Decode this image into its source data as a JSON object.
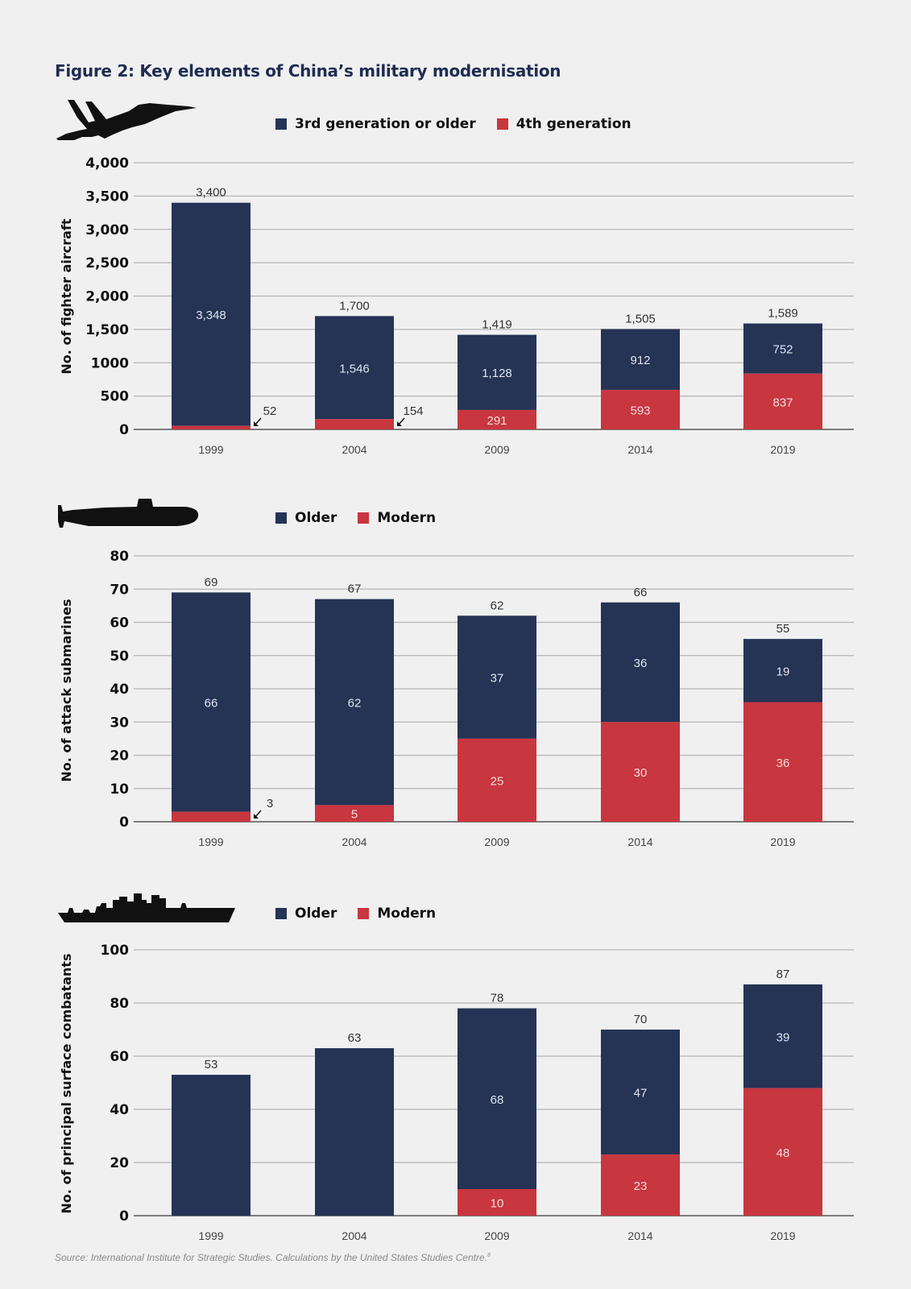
{
  "title": "Figure 2: Key elements of China’s military modernisation",
  "source": "Source: International Institute for Strategic Studies. Calculations by the United States Studies Centre.",
  "source_footnote": "8",
  "colors": {
    "older": "#253355",
    "modern": "#c8363f",
    "grid": "#b5b5b5",
    "axis": "#555555",
    "background": "#f0f0f0"
  },
  "icons": [
    "fighter-jet-icon",
    "submarine-icon",
    "warship-icon"
  ],
  "chart_data": [
    {
      "type": "bar",
      "stacked": true,
      "categories": [
        "1999",
        "2004",
        "2009",
        "2014",
        "2019"
      ],
      "series": [
        {
          "name": "4th generation",
          "values": [
            52,
            154,
            291,
            593,
            837
          ]
        },
        {
          "name": "3rd generation or older",
          "values": [
            3348,
            1546,
            1128,
            912,
            752
          ]
        }
      ],
      "totals": [
        3400,
        1700,
        1419,
        1505,
        1589
      ],
      "total_labels": [
        "3,400",
        "1,700",
        "1,419",
        "1,505",
        "1,589"
      ],
      "older_labels": [
        "3,348",
        "1,546",
        "1,128",
        "912",
        "752"
      ],
      "modern_labels": [
        "52",
        "154",
        "291",
        "593",
        "837"
      ],
      "modern_label_outside": [
        true,
        true,
        false,
        false,
        false
      ],
      "legend": [
        "3rd generation or older",
        "4th generation"
      ],
      "title": "",
      "xlabel": "",
      "ylabel": "No. of fighter aircraft",
      "ylim": [
        0,
        4000
      ],
      "yticks": [
        0,
        500,
        1000,
        1500,
        2000,
        2500,
        3000,
        3500,
        4000
      ],
      "ytick_labels": [
        "0",
        "500",
        "1000",
        "1,500",
        "2,000",
        "2,500",
        "3,000",
        "3,500",
        "4,000"
      ],
      "grid": true,
      "legend_position": "top"
    },
    {
      "type": "bar",
      "stacked": true,
      "categories": [
        "1999",
        "2004",
        "2009",
        "2014",
        "2019"
      ],
      "series": [
        {
          "name": "Modern",
          "values": [
            3,
            5,
            25,
            30,
            36
          ]
        },
        {
          "name": "Older",
          "values": [
            66,
            62,
            37,
            36,
            19
          ]
        }
      ],
      "totals": [
        69,
        67,
        62,
        66,
        55
      ],
      "total_labels": [
        "69",
        "67",
        "62",
        "66",
        "55"
      ],
      "older_labels": [
        "66",
        "62",
        "37",
        "36",
        "19"
      ],
      "modern_labels": [
        "3",
        "5",
        "25",
        "30",
        "36"
      ],
      "modern_label_outside": [
        true,
        false,
        false,
        false,
        false
      ],
      "legend": [
        "Older",
        "Modern"
      ],
      "title": "",
      "xlabel": "",
      "ylabel": "No. of attack submarines",
      "ylim": [
        0,
        80
      ],
      "yticks": [
        0,
        10,
        20,
        30,
        40,
        50,
        60,
        70,
        80
      ],
      "ytick_labels": [
        "0",
        "10",
        "20",
        "30",
        "40",
        "50",
        "60",
        "70",
        "80"
      ],
      "grid": true,
      "legend_position": "top"
    },
    {
      "type": "bar",
      "stacked": true,
      "categories": [
        "1999",
        "2004",
        "2009",
        "2014",
        "2019"
      ],
      "series": [
        {
          "name": "Modern",
          "values": [
            0,
            0,
            10,
            23,
            48
          ]
        },
        {
          "name": "Older",
          "values": [
            53,
            63,
            68,
            47,
            39
          ]
        }
      ],
      "totals": [
        53,
        63,
        78,
        70,
        87
      ],
      "total_labels": [
        "53",
        "63",
        "78",
        "70",
        "87"
      ],
      "older_labels": [
        "",
        "",
        "68",
        "47",
        "39"
      ],
      "modern_labels": [
        "",
        "",
        "10",
        "23",
        "48"
      ],
      "modern_label_outside": [
        false,
        false,
        false,
        false,
        false
      ],
      "legend": [
        "Older",
        "Modern"
      ],
      "title": "",
      "xlabel": "",
      "ylabel": "No. of principal surface combatants",
      "ylim": [
        0,
        100
      ],
      "yticks": [
        0,
        20,
        40,
        60,
        80,
        100
      ],
      "ytick_labels": [
        "0",
        "20",
        "40",
        "60",
        "80",
        "100"
      ],
      "grid": true,
      "legend_position": "top"
    }
  ]
}
